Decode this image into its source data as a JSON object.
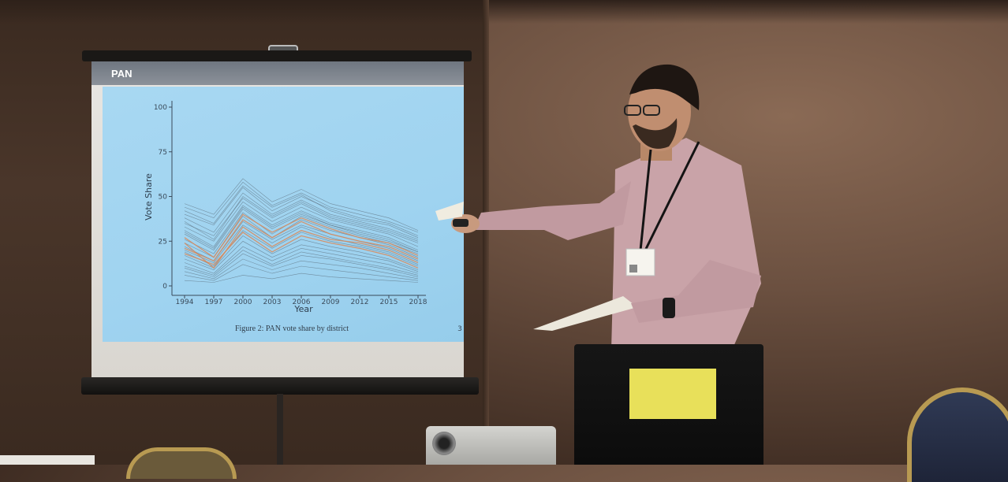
{
  "slide": {
    "title": "PAN",
    "caption": "Figure 2: PAN vote share by district",
    "footnote": "3"
  },
  "chart_data": {
    "type": "line",
    "title": "",
    "xlabel": "Year",
    "ylabel": "Vote Share",
    "x": [
      1994,
      1997,
      2000,
      2003,
      2006,
      2009,
      2012,
      2015,
      2018
    ],
    "x_ticks": [
      "1994",
      "1997",
      "2000",
      "2003",
      "2006",
      "2009",
      "2012",
      "2015",
      "2018"
    ],
    "y_ticks": [
      "0",
      "25",
      "50",
      "75",
      "100"
    ],
    "ylim": [
      0,
      100
    ],
    "grid": false,
    "legend": "none",
    "series": [
      {
        "values": [
          24,
          10,
          33,
          22,
          31,
          26,
          24,
          20,
          13
        ],
        "color": "#d98a5a"
      },
      {
        "values": [
          21,
          14,
          37,
          27,
          36,
          29,
          25,
          22,
          15
        ],
        "color": "#d98a5a"
      },
      {
        "values": [
          18,
          12,
          30,
          19,
          28,
          24,
          21,
          17,
          10
        ],
        "color": "#d98a5a"
      },
      {
        "values": [
          27,
          16,
          40,
          30,
          38,
          32,
          27,
          24,
          17
        ],
        "color": "#d98a5a"
      },
      {
        "values": [
          44,
          38,
          58,
          45,
          52,
          44,
          40,
          36,
          30
        ],
        "color": "#4a5560"
      },
      {
        "values": [
          38,
          30,
          52,
          40,
          48,
          40,
          36,
          32,
          26
        ],
        "color": "#4a5560"
      },
      {
        "values": [
          33,
          25,
          47,
          36,
          44,
          37,
          33,
          29,
          22
        ],
        "color": "#4a5560"
      },
      {
        "values": [
          29,
          20,
          43,
          32,
          40,
          34,
          30,
          26,
          19
        ],
        "color": "#4a5560"
      },
      {
        "values": [
          15,
          9,
          25,
          16,
          23,
          20,
          17,
          14,
          8
        ],
        "color": "#4a5560"
      },
      {
        "values": [
          10,
          5,
          18,
          11,
          17,
          15,
          12,
          9,
          5
        ],
        "color": "#4a5560"
      },
      {
        "values": [
          6,
          3,
          12,
          7,
          11,
          9,
          7,
          5,
          3
        ],
        "color": "#4a5560"
      },
      {
        "values": [
          3,
          2,
          6,
          4,
          7,
          5,
          4,
          3,
          2
        ],
        "color": "#4a5560"
      },
      {
        "values": [
          40,
          34,
          55,
          42,
          50,
          43,
          38,
          35,
          28
        ],
        "color": "#4a5560"
      },
      {
        "values": [
          35,
          28,
          49,
          38,
          46,
          38,
          34,
          30,
          24
        ],
        "color": "#4a5560"
      },
      {
        "values": [
          31,
          22,
          45,
          34,
          42,
          35,
          31,
          27,
          20
        ],
        "color": "#4a5560"
      },
      {
        "values": [
          26,
          18,
          41,
          29,
          39,
          33,
          28,
          24,
          18
        ],
        "color": "#4a5560"
      },
      {
        "values": [
          22,
          14,
          36,
          26,
          34,
          29,
          25,
          21,
          14
        ],
        "color": "#4a5560"
      },
      {
        "values": [
          19,
          11,
          31,
          21,
          30,
          25,
          22,
          18,
          11
        ],
        "color": "#4a5560"
      },
      {
        "values": [
          13,
          7,
          22,
          14,
          21,
          18,
          15,
          12,
          7
        ],
        "color": "#4a5560"
      },
      {
        "values": [
          8,
          4,
          15,
          9,
          14,
          12,
          10,
          7,
          4
        ],
        "color": "#4a5560"
      },
      {
        "values": [
          46,
          40,
          60,
          47,
          54,
          46,
          42,
          38,
          31
        ],
        "color": "#4a5560"
      },
      {
        "values": [
          36,
          26,
          50,
          39,
          47,
          39,
          35,
          31,
          25
        ],
        "color": "#4a5560"
      },
      {
        "values": [
          24,
          16,
          39,
          27,
          37,
          31,
          27,
          23,
          16
        ],
        "color": "#4a5560"
      },
      {
        "values": [
          17,
          10,
          28,
          18,
          26,
          22,
          19,
          15,
          9
        ],
        "color": "#4a5560"
      },
      {
        "values": [
          11,
          6,
          20,
          12,
          19,
          16,
          13,
          10,
          6
        ],
        "color": "#4a5560"
      },
      {
        "values": [
          42,
          35,
          56,
          44,
          51,
          42,
          37,
          34,
          27
        ],
        "color": "#4a5560"
      },
      {
        "values": [
          30,
          21,
          44,
          33,
          41,
          34,
          29,
          25,
          19
        ],
        "color": "#4a5560"
      },
      {
        "values": [
          20,
          13,
          34,
          24,
          33,
          27,
          23,
          19,
          12
        ],
        "color": "#4a5560"
      }
    ]
  },
  "laptop_sticker": {
    "text": ""
  },
  "badge": {
    "text": ""
  }
}
